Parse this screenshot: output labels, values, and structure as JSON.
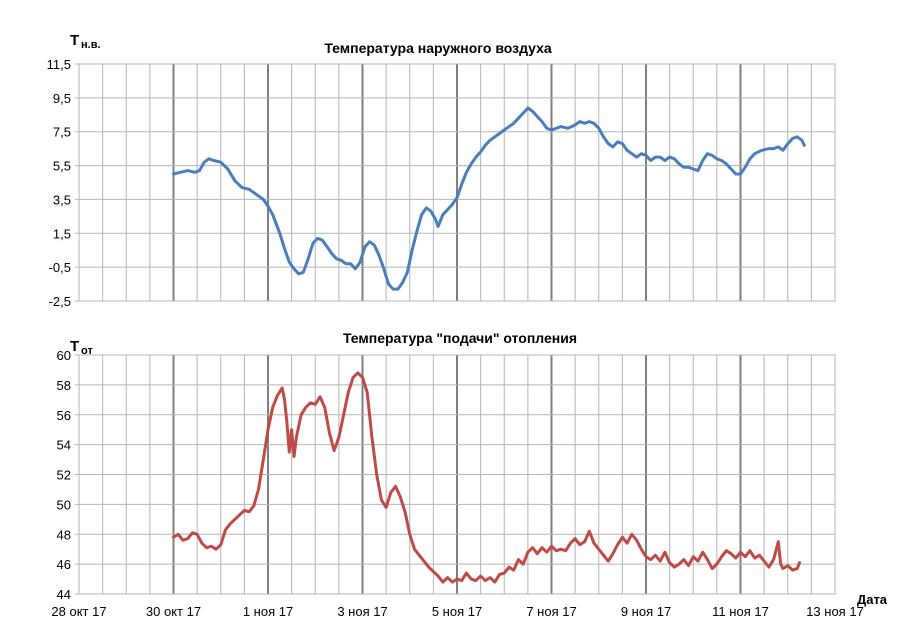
{
  "chart_data": [
    {
      "type": "line",
      "title": "Температура наружного воздуха",
      "ylabel_main": "T",
      "ylabel_sub": "н.в.",
      "ylim": [
        -2.5,
        11.5
      ],
      "yticks": [
        "11,5",
        "9,5",
        "7,5",
        "5,5",
        "3,5",
        "1,5",
        "-0,5",
        "-2,5"
      ],
      "xlim": [
        0,
        16
      ],
      "grid": true,
      "series": [
        {
          "color": "#4a7ebb",
          "points": [
            [
              2.0,
              5.0
            ],
            [
              2.15,
              5.1
            ],
            [
              2.3,
              5.2
            ],
            [
              2.45,
              5.1
            ],
            [
              2.55,
              5.2
            ],
            [
              2.65,
              5.7
            ],
            [
              2.75,
              5.9
            ],
            [
              2.85,
              5.8
            ],
            [
              3.0,
              5.7
            ],
            [
              3.15,
              5.3
            ],
            [
              3.3,
              4.6
            ],
            [
              3.45,
              4.2
            ],
            [
              3.6,
              4.1
            ],
            [
              3.75,
              3.8
            ],
            [
              3.9,
              3.5
            ],
            [
              4.0,
              3.1
            ],
            [
              4.1,
              2.6
            ],
            [
              4.25,
              1.5
            ],
            [
              4.35,
              0.6
            ],
            [
              4.45,
              -0.2
            ],
            [
              4.55,
              -0.6
            ],
            [
              4.65,
              -0.9
            ],
            [
              4.75,
              -0.8
            ],
            [
              4.85,
              0.0
            ],
            [
              4.95,
              0.9
            ],
            [
              5.05,
              1.2
            ],
            [
              5.15,
              1.1
            ],
            [
              5.25,
              0.7
            ],
            [
              5.35,
              0.3
            ],
            [
              5.45,
              0.0
            ],
            [
              5.55,
              -0.1
            ],
            [
              5.65,
              -0.3
            ],
            [
              5.75,
              -0.3
            ],
            [
              5.85,
              -0.6
            ],
            [
              5.95,
              -0.2
            ],
            [
              6.05,
              0.7
            ],
            [
              6.15,
              1.0
            ],
            [
              6.25,
              0.8
            ],
            [
              6.35,
              0.2
            ],
            [
              6.45,
              -0.6
            ],
            [
              6.55,
              -1.5
            ],
            [
              6.65,
              -1.8
            ],
            [
              6.75,
              -1.8
            ],
            [
              6.85,
              -1.4
            ],
            [
              6.95,
              -0.8
            ],
            [
              7.05,
              0.5
            ],
            [
              7.15,
              1.6
            ],
            [
              7.25,
              2.6
            ],
            [
              7.35,
              3.0
            ],
            [
              7.45,
              2.8
            ],
            [
              7.55,
              2.3
            ],
            [
              7.6,
              1.9
            ],
            [
              7.7,
              2.6
            ],
            [
              7.8,
              2.9
            ],
            [
              7.9,
              3.2
            ],
            [
              8.0,
              3.6
            ],
            [
              8.1,
              4.4
            ],
            [
              8.2,
              5.1
            ],
            [
              8.3,
              5.6
            ],
            [
              8.4,
              6.0
            ],
            [
              8.5,
              6.3
            ],
            [
              8.6,
              6.7
            ],
            [
              8.7,
              7.0
            ],
            [
              8.85,
              7.3
            ],
            [
              9.0,
              7.6
            ],
            [
              9.1,
              7.8
            ],
            [
              9.2,
              8.0
            ],
            [
              9.3,
              8.3
            ],
            [
              9.4,
              8.6
            ],
            [
              9.5,
              8.9
            ],
            [
              9.6,
              8.7
            ],
            [
              9.7,
              8.4
            ],
            [
              9.8,
              8.1
            ],
            [
              9.9,
              7.7
            ],
            [
              10.0,
              7.6
            ],
            [
              10.2,
              7.8
            ],
            [
              10.35,
              7.7
            ],
            [
              10.5,
              7.9
            ],
            [
              10.6,
              8.1
            ],
            [
              10.7,
              8.0
            ],
            [
              10.8,
              8.1
            ],
            [
              10.9,
              8.0
            ],
            [
              11.0,
              7.7
            ],
            [
              11.1,
              7.2
            ],
            [
              11.2,
              6.8
            ],
            [
              11.3,
              6.6
            ],
            [
              11.4,
              6.9
            ],
            [
              11.5,
              6.8
            ],
            [
              11.6,
              6.4
            ],
            [
              11.7,
              6.2
            ],
            [
              11.8,
              6.0
            ],
            [
              11.9,
              6.2
            ],
            [
              12.0,
              6.1
            ],
            [
              12.1,
              5.8
            ],
            [
              12.2,
              6.0
            ],
            [
              12.3,
              6.0
            ],
            [
              12.4,
              5.8
            ],
            [
              12.5,
              6.0
            ],
            [
              12.6,
              5.9
            ],
            [
              12.7,
              5.6
            ],
            [
              12.8,
              5.4
            ],
            [
              12.9,
              5.4
            ],
            [
              13.0,
              5.3
            ],
            [
              13.1,
              5.2
            ],
            [
              13.2,
              5.8
            ],
            [
              13.3,
              6.2
            ],
            [
              13.4,
              6.1
            ],
            [
              13.5,
              5.9
            ],
            [
              13.6,
              5.8
            ],
            [
              13.7,
              5.6
            ],
            [
              13.8,
              5.3
            ],
            [
              13.9,
              5.0
            ],
            [
              14.0,
              5.0
            ],
            [
              14.1,
              5.4
            ],
            [
              14.2,
              5.9
            ],
            [
              14.3,
              6.2
            ],
            [
              14.45,
              6.4
            ],
            [
              14.6,
              6.5
            ],
            [
              14.7,
              6.5
            ],
            [
              14.8,
              6.6
            ],
            [
              14.9,
              6.4
            ],
            [
              15.0,
              6.8
            ],
            [
              15.1,
              7.1
            ],
            [
              15.2,
              7.2
            ],
            [
              15.3,
              7.0
            ],
            [
              15.35,
              6.7
            ]
          ]
        }
      ]
    },
    {
      "type": "line",
      "title": "Температура \"подачи\" отопления",
      "ylabel_main": "T",
      "ylabel_sub": "от",
      "xlabel": "Дата",
      "ylim": [
        44,
        60
      ],
      "yticks": [
        "60",
        "58",
        "56",
        "54",
        "52",
        "50",
        "48",
        "46",
        "44"
      ],
      "xlim": [
        0,
        16
      ],
      "xticks": [
        "28 окт 17",
        "30 окт 17",
        "1 ноя 17",
        "3 ноя 17",
        "5 ноя 17",
        "7 ноя 17",
        "9 ноя 17",
        "11 ноя 17",
        "13 ноя 17"
      ],
      "grid": true,
      "series": [
        {
          "color": "#be4b48",
          "points": [
            [
              2.0,
              47.8
            ],
            [
              2.1,
              48.0
            ],
            [
              2.2,
              47.6
            ],
            [
              2.3,
              47.7
            ],
            [
              2.4,
              48.1
            ],
            [
              2.5,
              48.0
            ],
            [
              2.6,
              47.4
            ],
            [
              2.7,
              47.1
            ],
            [
              2.8,
              47.2
            ],
            [
              2.9,
              47.0
            ],
            [
              3.0,
              47.3
            ],
            [
              3.1,
              48.3
            ],
            [
              3.2,
              48.7
            ],
            [
              3.3,
              49.0
            ],
            [
              3.4,
              49.3
            ],
            [
              3.5,
              49.6
            ],
            [
              3.6,
              49.5
            ],
            [
              3.7,
              49.9
            ],
            [
              3.8,
              51.0
            ],
            [
              3.9,
              53.0
            ],
            [
              4.0,
              55.0
            ],
            [
              4.1,
              56.5
            ],
            [
              4.2,
              57.3
            ],
            [
              4.3,
              57.8
            ],
            [
              4.35,
              57.0
            ],
            [
              4.4,
              55.5
            ],
            [
              4.45,
              53.5
            ],
            [
              4.5,
              55.0
            ],
            [
              4.55,
              53.2
            ],
            [
              4.6,
              54.5
            ],
            [
              4.7,
              56.0
            ],
            [
              4.8,
              56.5
            ],
            [
              4.9,
              56.8
            ],
            [
              5.0,
              56.7
            ],
            [
              5.1,
              57.2
            ],
            [
              5.2,
              56.5
            ],
            [
              5.3,
              54.8
            ],
            [
              5.4,
              53.6
            ],
            [
              5.5,
              54.5
            ],
            [
              5.6,
              56.0
            ],
            [
              5.7,
              57.5
            ],
            [
              5.8,
              58.5
            ],
            [
              5.9,
              58.8
            ],
            [
              6.0,
              58.5
            ],
            [
              6.1,
              57.5
            ],
            [
              6.2,
              54.5
            ],
            [
              6.3,
              52.0
            ],
            [
              6.4,
              50.3
            ],
            [
              6.5,
              49.8
            ],
            [
              6.6,
              50.8
            ],
            [
              6.7,
              51.2
            ],
            [
              6.8,
              50.5
            ],
            [
              6.9,
              49.5
            ],
            [
              7.0,
              48.0
            ],
            [
              7.1,
              47.0
            ],
            [
              7.2,
              46.6
            ],
            [
              7.3,
              46.2
            ],
            [
              7.4,
              45.8
            ],
            [
              7.5,
              45.5
            ],
            [
              7.6,
              45.2
            ],
            [
              7.7,
              44.8
            ],
            [
              7.8,
              45.1
            ],
            [
              7.9,
              44.8
            ],
            [
              8.0,
              45.0
            ],
            [
              8.1,
              44.9
            ],
            [
              8.2,
              45.4
            ],
            [
              8.3,
              45.0
            ],
            [
              8.4,
              44.9
            ],
            [
              8.5,
              45.2
            ],
            [
              8.6,
              44.9
            ],
            [
              8.7,
              45.1
            ],
            [
              8.8,
              44.8
            ],
            [
              8.9,
              45.3
            ],
            [
              9.0,
              45.4
            ],
            [
              9.1,
              45.8
            ],
            [
              9.2,
              45.6
            ],
            [
              9.3,
              46.3
            ],
            [
              9.4,
              46.0
            ],
            [
              9.5,
              46.8
            ],
            [
              9.6,
              47.1
            ],
            [
              9.7,
              46.7
            ],
            [
              9.8,
              47.1
            ],
            [
              9.9,
              46.8
            ],
            [
              10.0,
              47.2
            ],
            [
              10.1,
              46.9
            ],
            [
              10.2,
              47.0
            ],
            [
              10.3,
              46.9
            ],
            [
              10.4,
              47.4
            ],
            [
              10.5,
              47.7
            ],
            [
              10.6,
              47.3
            ],
            [
              10.7,
              47.5
            ],
            [
              10.8,
              48.2
            ],
            [
              10.9,
              47.4
            ],
            [
              11.0,
              47.0
            ],
            [
              11.1,
              46.6
            ],
            [
              11.2,
              46.2
            ],
            [
              11.3,
              46.7
            ],
            [
              11.4,
              47.3
            ],
            [
              11.5,
              47.8
            ],
            [
              11.6,
              47.4
            ],
            [
              11.7,
              48.0
            ],
            [
              11.8,
              47.6
            ],
            [
              11.9,
              47.0
            ],
            [
              12.0,
              46.5
            ],
            [
              12.1,
              46.3
            ],
            [
              12.2,
              46.6
            ],
            [
              12.3,
              46.2
            ],
            [
              12.4,
              46.8
            ],
            [
              12.5,
              46.1
            ],
            [
              12.6,
              45.8
            ],
            [
              12.7,
              46.0
            ],
            [
              12.8,
              46.3
            ],
            [
              12.9,
              45.9
            ],
            [
              13.0,
              46.5
            ],
            [
              13.1,
              46.2
            ],
            [
              13.2,
              46.8
            ],
            [
              13.3,
              46.3
            ],
            [
              13.4,
              45.7
            ],
            [
              13.5,
              46.0
            ],
            [
              13.6,
              46.5
            ],
            [
              13.7,
              46.9
            ],
            [
              13.8,
              46.7
            ],
            [
              13.9,
              46.4
            ],
            [
              14.0,
              46.8
            ],
            [
              14.1,
              46.5
            ],
            [
              14.2,
              46.9
            ],
            [
              14.3,
              46.4
            ],
            [
              14.4,
              46.6
            ],
            [
              14.5,
              46.2
            ],
            [
              14.6,
              45.8
            ],
            [
              14.7,
              46.3
            ],
            [
              14.8,
              47.5
            ],
            [
              14.85,
              46.0
            ],
            [
              14.9,
              45.7
            ],
            [
              15.0,
              45.9
            ],
            [
              15.1,
              45.6
            ],
            [
              15.2,
              45.7
            ],
            [
              15.25,
              46.1
            ]
          ]
        }
      ]
    }
  ]
}
